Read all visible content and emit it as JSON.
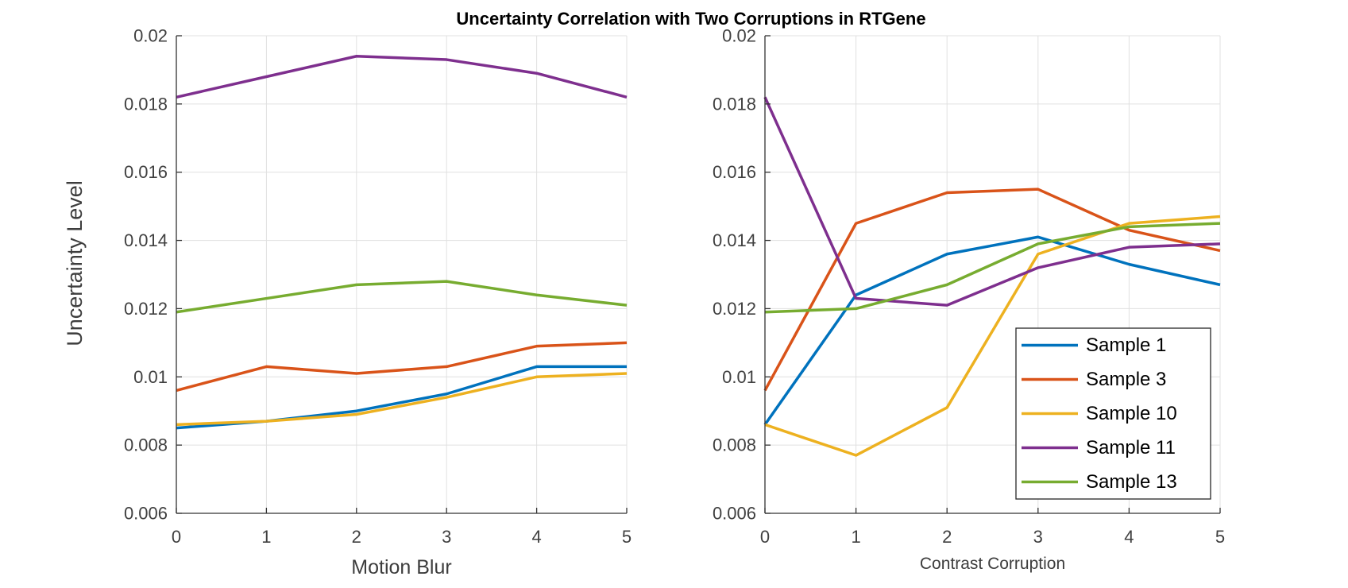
{
  "title": "Uncertainty Correlation with Two Corruptions in RTGene",
  "palette": {
    "sample1_blue": "#0072BD",
    "sample3_red": "#D95319",
    "sample10_yellow": "#EDB120",
    "sample11_purple": "#7E2F8E",
    "sample13_green": "#77AC30",
    "grid": "#E0E0E0",
    "axis": "#333333",
    "tick_label": "#404040",
    "label_text": "#3d3d3d",
    "legend_border": "#262626",
    "legend_bg": "#ffffff"
  },
  "legend": {
    "entries": [
      "Sample 1",
      "Sample 3",
      "Sample 10",
      "Sample 11",
      "Sample 13"
    ],
    "location": "inside lower-right of right subplot"
  },
  "chart_data": [
    {
      "type": "line",
      "title": "",
      "xlabel": "Motion Blur",
      "ylabel": "Uncertainty Level",
      "x": [
        0,
        1,
        2,
        3,
        4,
        5
      ],
      "xlim": [
        0,
        5
      ],
      "ylim": [
        0.006,
        0.02
      ],
      "grid": true,
      "legend_visible": false,
      "xticks": [
        0,
        1,
        2,
        3,
        4,
        5
      ],
      "xtick_labels": [
        "0",
        "1",
        "2",
        "3",
        "4",
        "5"
      ],
      "yticks": [
        0.006,
        0.008,
        0.01,
        0.012,
        0.014,
        0.016,
        0.018,
        0.02
      ],
      "ytick_labels": [
        "0.006",
        "0.008",
        "0.01",
        "0.012",
        "0.014",
        "0.016",
        "0.018",
        "0.02"
      ],
      "series": [
        {
          "name": "Sample 1",
          "color": "#0072BD",
          "values": [
            0.0085,
            0.0087,
            0.009,
            0.0095,
            0.0103,
            0.0103
          ]
        },
        {
          "name": "Sample 3",
          "color": "#D95319",
          "values": [
            0.0096,
            0.0103,
            0.0101,
            0.0103,
            0.0109,
            0.011
          ]
        },
        {
          "name": "Sample 10",
          "color": "#EDB120",
          "values": [
            0.0086,
            0.0087,
            0.0089,
            0.0094,
            0.01,
            0.0101
          ]
        },
        {
          "name": "Sample 11",
          "color": "#7E2F8E",
          "values": [
            0.0182,
            0.0188,
            0.0194,
            0.0193,
            0.0189,
            0.0182
          ]
        },
        {
          "name": "Sample 13",
          "color": "#77AC30",
          "values": [
            0.0119,
            0.0123,
            0.0127,
            0.0128,
            0.0124,
            0.0121
          ]
        }
      ]
    },
    {
      "type": "line",
      "title": "",
      "xlabel": "Contrast Corruption",
      "ylabel": "",
      "x": [
        0,
        1,
        2,
        3,
        4,
        5
      ],
      "xlim": [
        0,
        5
      ],
      "ylim": [
        0.006,
        0.02
      ],
      "grid": true,
      "legend_visible": true,
      "xticks": [
        0,
        1,
        2,
        3,
        4,
        5
      ],
      "xtick_labels": [
        "0",
        "1",
        "2",
        "3",
        "4",
        "5"
      ],
      "yticks": [
        0.006,
        0.008,
        0.01,
        0.012,
        0.014,
        0.016,
        0.018,
        0.02
      ],
      "ytick_labels": [
        "0.006",
        "0.008",
        "0.01",
        "0.012",
        "0.014",
        "0.016",
        "0.018",
        "0.02"
      ],
      "series": [
        {
          "name": "Sample 1",
          "color": "#0072BD",
          "values": [
            0.0086,
            0.0124,
            0.0136,
            0.0141,
            0.0133,
            0.0127
          ]
        },
        {
          "name": "Sample 3",
          "color": "#D95319",
          "values": [
            0.0096,
            0.0145,
            0.0154,
            0.0155,
            0.0143,
            0.0137
          ]
        },
        {
          "name": "Sample 10",
          "color": "#EDB120",
          "values": [
            0.0086,
            0.0077,
            0.0091,
            0.0136,
            0.0145,
            0.0147
          ]
        },
        {
          "name": "Sample 11",
          "color": "#7E2F8E",
          "values": [
            0.0182,
            0.0123,
            0.0121,
            0.0132,
            0.0138,
            0.0139
          ]
        },
        {
          "name": "Sample 13",
          "color": "#77AC30",
          "values": [
            0.0119,
            0.012,
            0.0127,
            0.0139,
            0.0144,
            0.0145
          ]
        }
      ]
    }
  ]
}
